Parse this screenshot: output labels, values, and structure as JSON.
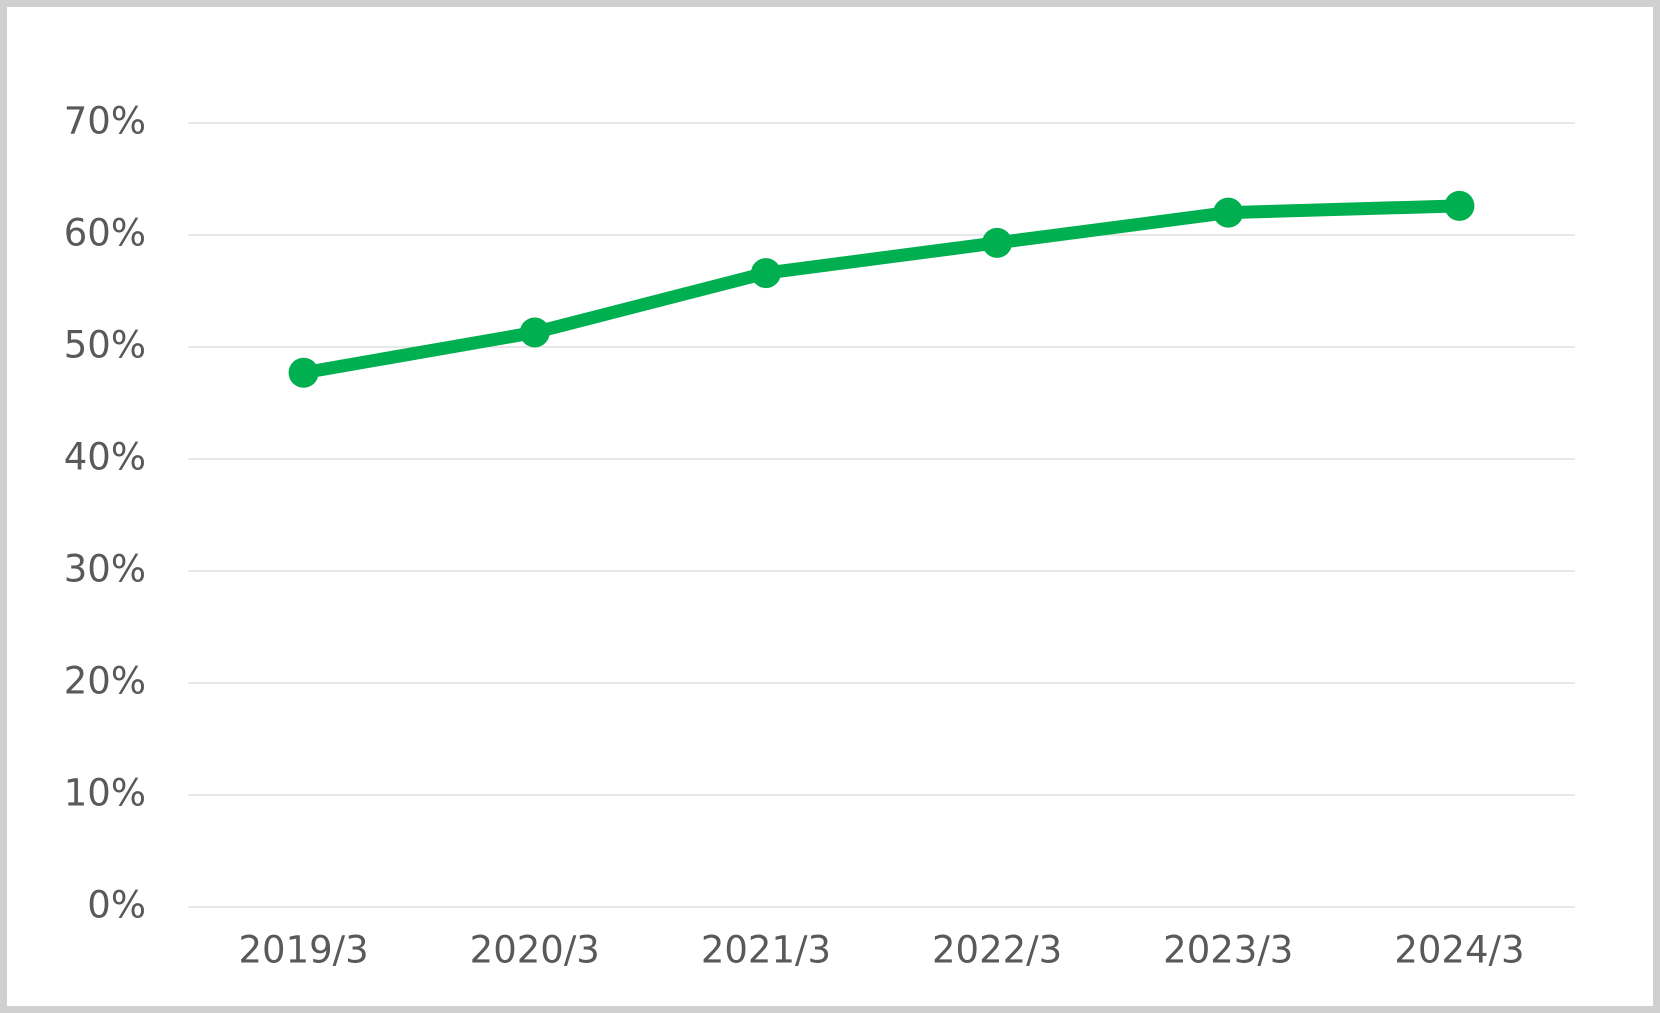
{
  "chart_data": {
    "type": "line",
    "categories": [
      "2019/3",
      "2020/3",
      "2021/3",
      "2022/3",
      "2023/3",
      "2024/3"
    ],
    "series": [
      {
        "color": "#00b050",
        "values": [
          47.7,
          51.3,
          56.6,
          59.3,
          62.0,
          62.6
        ]
      }
    ],
    "ylim": [
      0,
      70
    ],
    "yticks": [
      {
        "value": 0,
        "label": "0%"
      },
      {
        "value": 10,
        "label": "10%"
      },
      {
        "value": 20,
        "label": "20%"
      },
      {
        "value": 30,
        "label": "30%"
      },
      {
        "value": 40,
        "label": "40%"
      },
      {
        "value": 50,
        "label": "50%"
      },
      {
        "value": 60,
        "label": "60%"
      },
      {
        "value": 70,
        "label": "70%"
      }
    ],
    "grid": true
  }
}
